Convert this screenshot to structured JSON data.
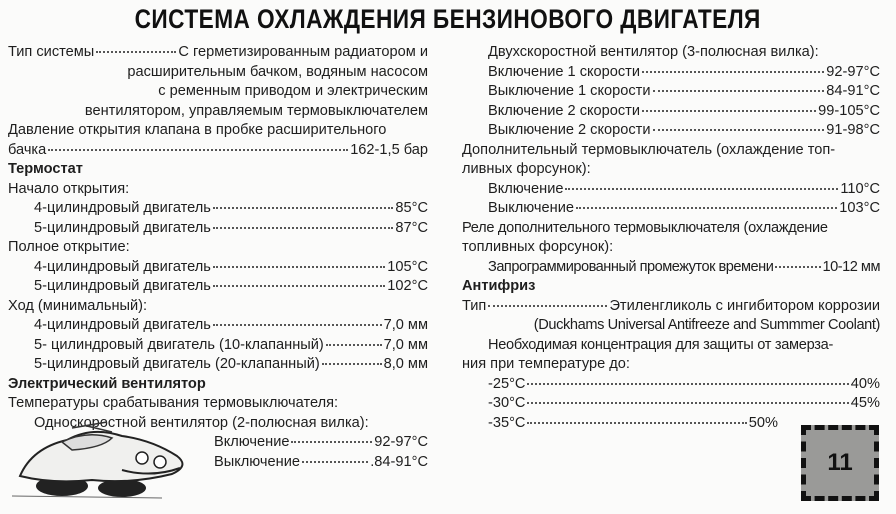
{
  "title": "СИСТЕМА ОХЛАЖДЕНИЯ БЕНЗИНОВОГО ДВИГАТЕЛЯ",
  "left": {
    "system_type_label": "Тип системы",
    "system_type_value": "С герметизированным радиатором и",
    "system_type_cont": [
      "расширительным бачком, водяным насосом",
      "с ременным приводом и электрическим",
      "вентилятором, управляемым термовыключателем"
    ],
    "pressure_label_1": "Давление открытия клапана в пробке расширительного",
    "pressure_label_2": "бачка",
    "pressure_value": "162-1,5 бар",
    "thermostat_heading": "Термостат",
    "opening_start": "Начало открытия:",
    "opening_start_rows": [
      {
        "label": "4-цилиндровый двигатель",
        "value": "85°C"
      },
      {
        "label": "5-цилиндровый двигатель",
        "value": "87°C"
      }
    ],
    "full_opening": "Полное открытие:",
    "full_opening_rows": [
      {
        "label": "4-цилиндровый двигатель",
        "value": "105°C"
      },
      {
        "label": "5-цилиндровый двигатель",
        "value": "102°C"
      }
    ],
    "stroke": "Ход (минимальный):",
    "stroke_rows": [
      {
        "label": "4-цилиндровый двигатель",
        "value": "7,0 мм"
      },
      {
        "label": "5- цилиндровый двигатель (10-клапанный)",
        "value": "7,0 мм"
      },
      {
        "label": "5-цилиндровый двигатель (20-клапанный)",
        "value": "8,0 мм"
      }
    ],
    "fan_heading": "Электрический вентилятор",
    "switch_temps": "Температуры срабатывания термовыключателя:",
    "single_speed": "Односкоростной вентилятор (2-полюсная вилка):",
    "single_speed_rows": [
      {
        "label": "Включение",
        "value": "92-97°C"
      },
      {
        "label": "Выключение",
        "value": ".84-91°C"
      }
    ]
  },
  "right": {
    "two_speed": "Двухскоростной вентилятор (3-полюсная вилка):",
    "two_speed_rows": [
      {
        "label": "Включение 1 скорости",
        "value": "92-97°C"
      },
      {
        "label": "Выключение 1 скорости",
        "value": "84-91°C"
      },
      {
        "label": "Включение 2 скорости",
        "value": "99-105°C"
      },
      {
        "label": "Выключение 2 скорости",
        "value": "91-98°C"
      }
    ],
    "extra_switch_1": "Дополнительный термовыключатель (охлаждение топ-",
    "extra_switch_2": "ливных форсунок):",
    "extra_switch_rows": [
      {
        "label": "Включение",
        "value": "110°C"
      },
      {
        "label": "Выключение",
        "value": "103°C"
      }
    ],
    "relay_1": "Реле дополнительного термовыключателя (охлаждение",
    "relay_2": "топливных форсунок):",
    "relay_row": {
      "label": "Запрограммированный промежуток времени",
      "value": "10-12 мм"
    },
    "antifreeze_heading": "Антифриз",
    "type_label": "Тип",
    "type_value": "Этиленгликоль с ингибитором коррозии",
    "type_cont": "(Duckhams Universal Antifreeze and Summmer Coolant)",
    "concentration_1": "Необходимая концентрация для защиты от замерза-",
    "concentration_2": "ния при температуре до:",
    "concentration_rows": [
      {
        "label": "-25°C",
        "value": "40%"
      },
      {
        "label": "-30°C",
        "value": "45%"
      },
      {
        "label": "-35°C",
        "value": "50%"
      }
    ]
  },
  "page_number": "11"
}
